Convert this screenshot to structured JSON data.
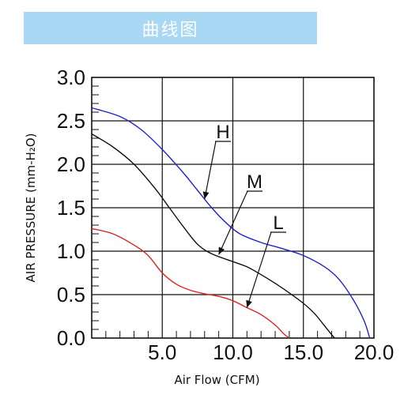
{
  "banner": {
    "title": "曲线图",
    "color": "#a9d8f5"
  },
  "chart_data": {
    "type": "line",
    "title": "",
    "xlabel": "Air Flow (CFM)",
    "ylabel": "AIR PRESSURE (mm-H₂O)",
    "xlim": [
      0,
      20
    ],
    "ylim": [
      0,
      3.0
    ],
    "x_ticks": [
      "5.0",
      "10.0",
      "15.0",
      "20.0"
    ],
    "y_ticks": [
      "0.0",
      "0.5",
      "1.0",
      "1.5",
      "2.0",
      "2.5",
      "3.0"
    ],
    "grid": true,
    "series": [
      {
        "name": "H",
        "color": "#2222cc",
        "points": [
          [
            0,
            2.65
          ],
          [
            2,
            2.55
          ],
          [
            3.5,
            2.4
          ],
          [
            5,
            2.17
          ],
          [
            6.5,
            1.9
          ],
          [
            7.5,
            1.7
          ],
          [
            8.5,
            1.5
          ],
          [
            9.5,
            1.33
          ],
          [
            10.5,
            1.2
          ],
          [
            12,
            1.1
          ],
          [
            13.5,
            1.03
          ],
          [
            15,
            0.95
          ],
          [
            16.5,
            0.82
          ],
          [
            17.5,
            0.68
          ],
          [
            18.5,
            0.45
          ],
          [
            19.3,
            0.2
          ],
          [
            19.7,
            0.0
          ]
        ]
      },
      {
        "name": "M",
        "color": "#111111",
        "points": [
          [
            0,
            2.35
          ],
          [
            1.5,
            2.2
          ],
          [
            3,
            2.0
          ],
          [
            4.5,
            1.72
          ],
          [
            5.5,
            1.5
          ],
          [
            6.5,
            1.28
          ],
          [
            7.5,
            1.08
          ],
          [
            8.5,
            0.97
          ],
          [
            10,
            0.88
          ],
          [
            11,
            0.82
          ],
          [
            12,
            0.73
          ],
          [
            13,
            0.63
          ],
          [
            14,
            0.52
          ],
          [
            15,
            0.4
          ],
          [
            15.8,
            0.28
          ],
          [
            16.6,
            0.12
          ],
          [
            17.2,
            0.0
          ]
        ]
      },
      {
        "name": "L",
        "color": "#dd2222",
        "points": [
          [
            0,
            1.26
          ],
          [
            1.5,
            1.2
          ],
          [
            3,
            1.07
          ],
          [
            4,
            0.95
          ],
          [
            5,
            0.75
          ],
          [
            6,
            0.62
          ],
          [
            7,
            0.55
          ],
          [
            8,
            0.51
          ],
          [
            9,
            0.48
          ],
          [
            10,
            0.43
          ],
          [
            11,
            0.35
          ],
          [
            12,
            0.27
          ],
          [
            13,
            0.15
          ],
          [
            13.6,
            0.05
          ],
          [
            14,
            0.0
          ]
        ]
      }
    ],
    "annotations": [
      {
        "text": "H",
        "series": "H"
      },
      {
        "text": "M",
        "series": "M"
      },
      {
        "text": "L",
        "series": "L"
      }
    ]
  }
}
